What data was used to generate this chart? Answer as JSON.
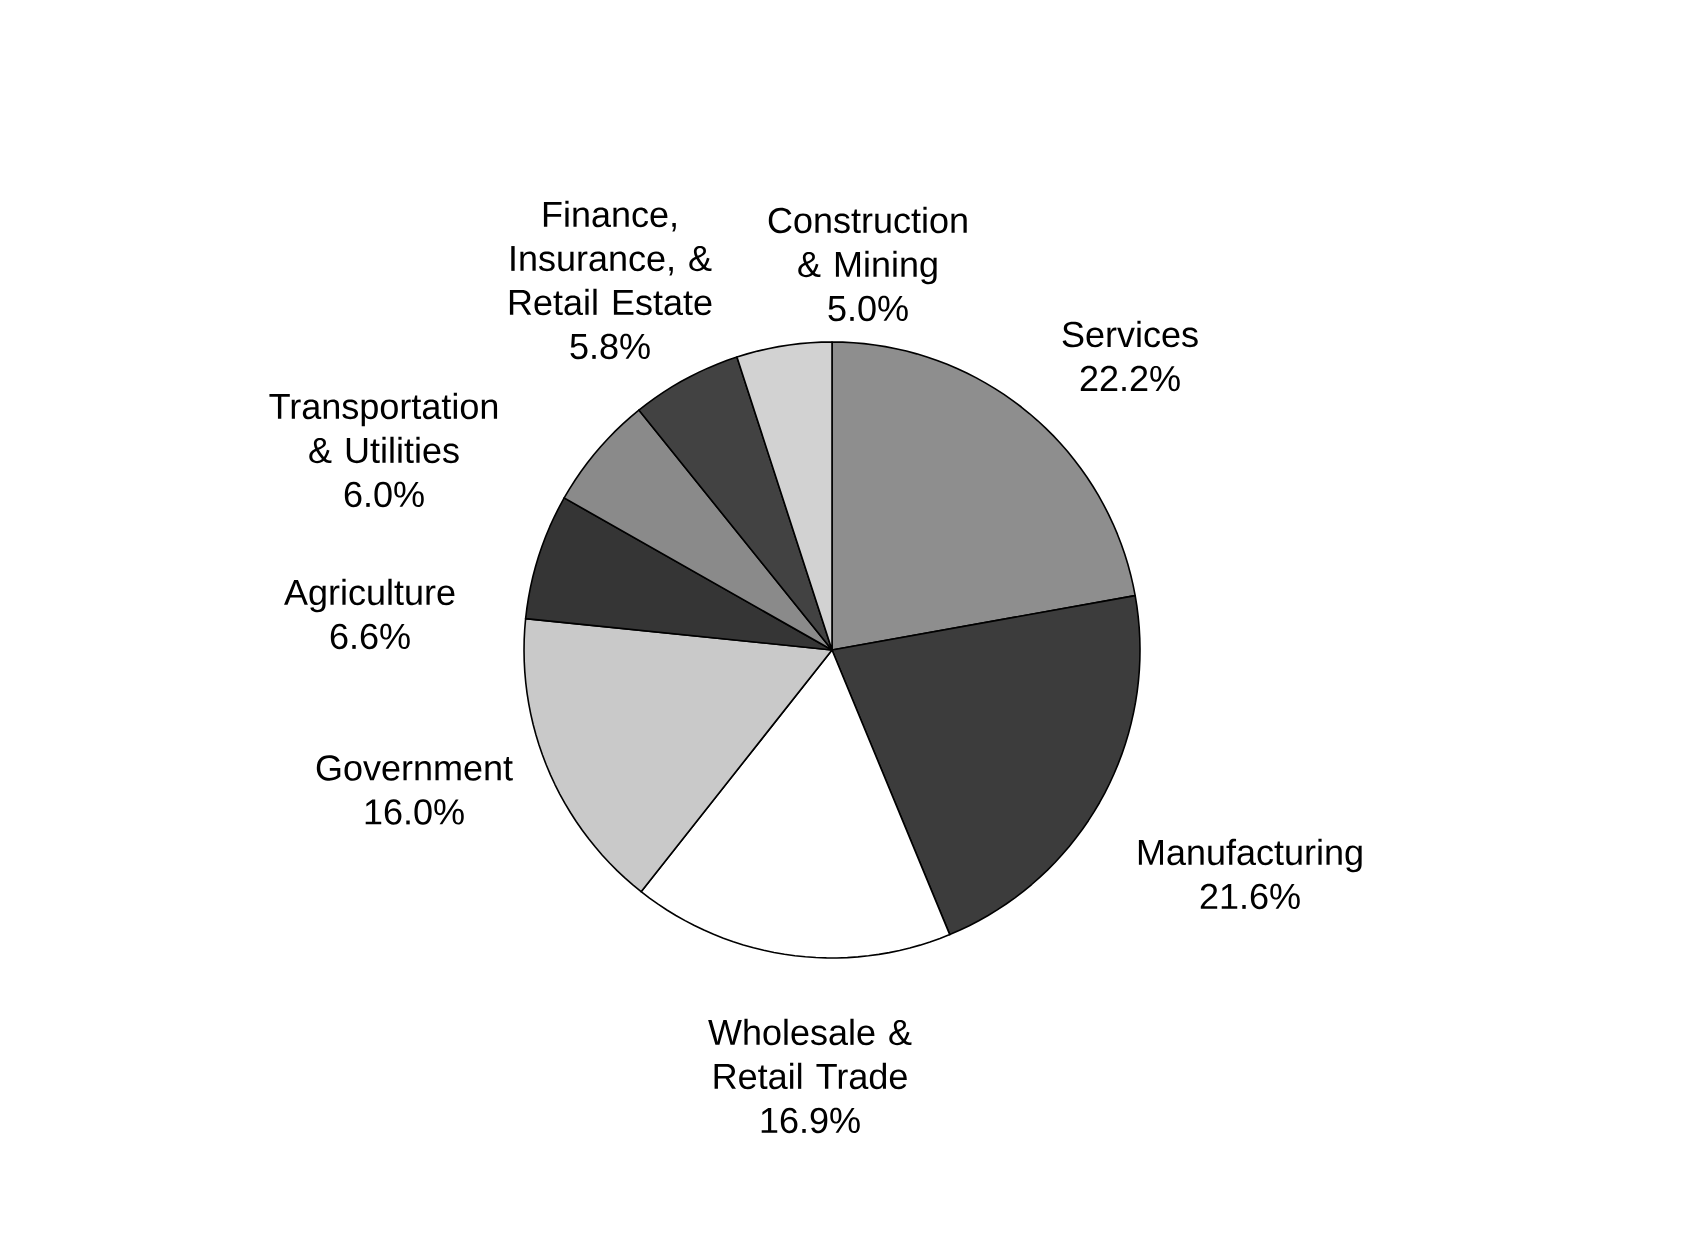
{
  "chart_data": {
    "type": "pie",
    "categories": [
      "Services",
      "Manufacturing",
      "Wholesale & Retail Trade",
      "Government",
      "Agriculture",
      "Transportation & Utilities",
      "Finance, Insurance, & Retail Estate",
      "Construction & Mining"
    ],
    "values": [
      22.2,
      21.6,
      16.9,
      16.0,
      6.6,
      6.0,
      5.8,
      5.0
    ],
    "value_labels": [
      "22.2%",
      "21.6%",
      "16.9%",
      "16.0%",
      "6.6%",
      "6.0%",
      "5.8%",
      "5.0%"
    ],
    "colors": [
      "#8e8e8e",
      "#3c3c3c",
      "#ffffff",
      "#c9c9c9",
      "#353535",
      "#8a8a8a",
      "#424242",
      "#d2d2d2"
    ]
  }
}
